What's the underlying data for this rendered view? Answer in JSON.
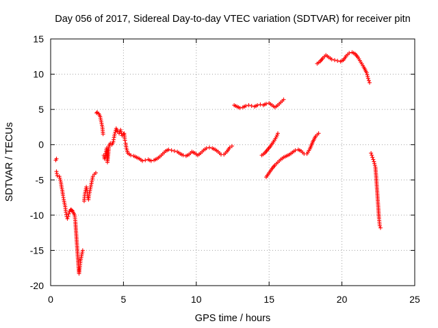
{
  "chart_data": {
    "type": "scatter",
    "title": "Day 056 of 2017, Sidereal Day-to-day VTEC variation (SDTVAR) for receiver pitn",
    "xlabel": "GPS time / hours",
    "ylabel": "SDTVAR / TECUs",
    "xlim": [
      0,
      25
    ],
    "ylim": [
      -20,
      15
    ],
    "xticks": [
      0,
      5,
      10,
      15,
      20,
      25
    ],
    "yticks": [
      -20,
      -15,
      -10,
      -5,
      0,
      5,
      10,
      15
    ],
    "xtick_labels": [
      "0",
      "5",
      "10",
      "15",
      "20",
      "25"
    ],
    "ytick_labels": [
      "-20",
      "-15",
      "-10",
      "-5",
      "0",
      "5",
      "10",
      "15"
    ],
    "grid": true,
    "marker": "plus",
    "color": "#ff0000",
    "series": [
      {
        "points": [
          [
            0.35,
            -2.2
          ],
          [
            0.4,
            -2.0
          ],
          [
            0.4,
            -3.8
          ],
          [
            0.45,
            -4.4
          ],
          [
            0.6,
            -4.5
          ],
          [
            0.7,
            -5.3
          ],
          [
            0.75,
            -6.0
          ],
          [
            0.8,
            -6.5
          ],
          [
            0.85,
            -7.2
          ],
          [
            0.9,
            -7.8
          ],
          [
            0.95,
            -8.3
          ],
          [
            1.0,
            -8.8
          ],
          [
            1.05,
            -9.6
          ],
          [
            1.1,
            -10.2
          ],
          [
            1.15,
            -10.5
          ],
          [
            1.2,
            -10.2
          ],
          [
            1.25,
            -9.8
          ],
          [
            1.3,
            -9.5
          ],
          [
            1.35,
            -9.3
          ],
          [
            1.4,
            -9.2
          ],
          [
            1.45,
            -9.3
          ],
          [
            1.5,
            -9.4
          ],
          [
            1.55,
            -9.6
          ],
          [
            1.6,
            -9.8
          ],
          [
            1.65,
            -10.0
          ],
          [
            1.7,
            -11.0
          ],
          [
            1.75,
            -12.5
          ],
          [
            1.8,
            -14.0
          ],
          [
            1.85,
            -15.5
          ],
          [
            1.9,
            -17.0
          ],
          [
            1.95,
            -18.3
          ],
          [
            2.0,
            -17.5
          ],
          [
            2.05,
            -16.5
          ],
          [
            2.1,
            -16.0
          ],
          [
            2.15,
            -15.5
          ],
          [
            2.2,
            -15.0
          ],
          [
            2.3,
            -8.0
          ],
          [
            2.35,
            -7.0
          ],
          [
            2.4,
            -6.5
          ],
          [
            2.45,
            -6.0
          ],
          [
            2.5,
            -6.5
          ],
          [
            2.55,
            -7.5
          ],
          [
            2.6,
            -7.8
          ],
          [
            2.65,
            -7.0
          ],
          [
            2.7,
            -6.5
          ],
          [
            2.75,
            -6.0
          ],
          [
            2.8,
            -5.5
          ],
          [
            2.85,
            -5.0
          ],
          [
            2.9,
            -4.5
          ],
          [
            3.0,
            -4.2
          ],
          [
            3.1,
            -4.0
          ],
          [
            3.15,
            4.5
          ],
          [
            3.2,
            4.6
          ],
          [
            3.3,
            4.4
          ],
          [
            3.4,
            4.0
          ],
          [
            3.45,
            3.5
          ],
          [
            3.5,
            3.0
          ],
          [
            3.55,
            2.5
          ],
          [
            3.6,
            1.5
          ],
          [
            3.65,
            -1.5
          ],
          [
            3.7,
            -2.0
          ],
          [
            3.75,
            -1.8
          ],
          [
            3.8,
            -1.0
          ],
          [
            3.85,
            -0.5
          ],
          [
            3.9,
            -2.5
          ],
          [
            3.95,
            -1.5
          ],
          [
            4.0,
            -0.2
          ],
          [
            4.1,
            0.2
          ],
          [
            4.2,
            0.0
          ],
          [
            4.3,
            0.4
          ],
          [
            4.35,
            1.0
          ],
          [
            4.4,
            1.5
          ],
          [
            4.5,
            2.3
          ],
          [
            4.6,
            1.9
          ],
          [
            4.7,
            1.6
          ],
          [
            4.8,
            2.1
          ],
          [
            4.9,
            1.3
          ],
          [
            5.0,
            1.5
          ],
          [
            5.05,
            1.6
          ],
          [
            5.1,
            0.6
          ],
          [
            5.15,
            0.2
          ],
          [
            5.2,
            -0.5
          ],
          [
            5.3,
            -1.2
          ],
          [
            5.5,
            -1.5
          ],
          [
            5.7,
            -1.6
          ],
          [
            5.9,
            -1.8
          ],
          [
            6.1,
            -2.0
          ],
          [
            6.3,
            -2.3
          ],
          [
            6.5,
            -2.2
          ],
          [
            6.7,
            -2.1
          ],
          [
            6.9,
            -2.3
          ],
          [
            7.1,
            -2.2
          ],
          [
            7.3,
            -2.0
          ],
          [
            7.5,
            -1.7
          ],
          [
            7.7,
            -1.3
          ],
          [
            7.9,
            -0.9
          ],
          [
            8.1,
            -0.7
          ],
          [
            8.3,
            -0.8
          ],
          [
            8.5,
            -0.9
          ],
          [
            8.7,
            -1.0
          ],
          [
            8.9,
            -1.3
          ],
          [
            9.1,
            -1.5
          ],
          [
            9.3,
            -1.6
          ],
          [
            9.5,
            -1.4
          ],
          [
            9.7,
            -1.0
          ],
          [
            9.9,
            -1.2
          ],
          [
            10.1,
            -1.5
          ],
          [
            10.3,
            -1.2
          ],
          [
            10.5,
            -0.8
          ],
          [
            10.7,
            -0.5
          ],
          [
            10.9,
            -0.4
          ],
          [
            11.1,
            -0.5
          ],
          [
            11.3,
            -0.7
          ],
          [
            11.5,
            -1.0
          ],
          [
            11.7,
            -1.4
          ],
          [
            11.9,
            -1.4
          ],
          [
            12.1,
            -1.0
          ],
          [
            12.3,
            -0.4
          ],
          [
            12.45,
            -0.2
          ],
          [
            12.6,
            5.6
          ],
          [
            12.8,
            5.4
          ],
          [
            13.0,
            5.2
          ],
          [
            13.2,
            5.3
          ],
          [
            13.4,
            5.5
          ],
          [
            13.6,
            5.6
          ],
          [
            13.8,
            5.5
          ],
          [
            14.0,
            5.4
          ],
          [
            14.2,
            5.6
          ],
          [
            14.4,
            5.7
          ],
          [
            14.6,
            5.6
          ],
          [
            14.8,
            5.8
          ],
          [
            15.0,
            5.9
          ],
          [
            15.2,
            5.6
          ],
          [
            15.4,
            5.3
          ],
          [
            15.6,
            5.6
          ],
          [
            15.8,
            6.0
          ],
          [
            16.0,
            6.4
          ],
          [
            14.5,
            -1.5
          ],
          [
            14.7,
            -1.2
          ],
          [
            14.9,
            -0.7
          ],
          [
            15.1,
            -0.2
          ],
          [
            15.3,
            0.4
          ],
          [
            15.5,
            1.1
          ],
          [
            15.6,
            1.6
          ],
          [
            14.8,
            -4.6
          ],
          [
            15.0,
            -4.0
          ],
          [
            15.2,
            -3.4
          ],
          [
            15.4,
            -2.9
          ],
          [
            15.6,
            -2.5
          ],
          [
            15.8,
            -2.1
          ],
          [
            16.0,
            -1.8
          ],
          [
            16.2,
            -1.6
          ],
          [
            16.4,
            -1.4
          ],
          [
            16.6,
            -1.1
          ],
          [
            16.8,
            -0.8
          ],
          [
            17.0,
            -0.7
          ],
          [
            17.2,
            -0.9
          ],
          [
            17.4,
            -1.3
          ],
          [
            17.6,
            -1.3
          ],
          [
            17.8,
            -0.6
          ],
          [
            18.0,
            0.4
          ],
          [
            18.2,
            1.2
          ],
          [
            18.4,
            1.6
          ],
          [
            18.3,
            11.5
          ],
          [
            18.5,
            11.8
          ],
          [
            18.7,
            12.3
          ],
          [
            18.9,
            12.7
          ],
          [
            19.1,
            12.4
          ],
          [
            19.3,
            12.1
          ],
          [
            19.5,
            12.0
          ],
          [
            19.7,
            11.9
          ],
          [
            19.9,
            11.8
          ],
          [
            20.1,
            12.0
          ],
          [
            20.3,
            12.6
          ],
          [
            20.5,
            13.0
          ],
          [
            20.7,
            13.1
          ],
          [
            20.9,
            12.9
          ],
          [
            21.1,
            12.4
          ],
          [
            21.3,
            11.7
          ],
          [
            21.5,
            11.0
          ],
          [
            21.7,
            10.2
          ],
          [
            21.8,
            9.4
          ],
          [
            21.9,
            8.8
          ],
          [
            22.0,
            -1.2
          ],
          [
            22.1,
            -1.8
          ],
          [
            22.2,
            -2.4
          ],
          [
            22.3,
            -3.2
          ],
          [
            22.35,
            -4.5
          ],
          [
            22.4,
            -6.0
          ],
          [
            22.45,
            -7.5
          ],
          [
            22.5,
            -9.0
          ],
          [
            22.55,
            -10.5
          ],
          [
            22.6,
            -11.5
          ],
          [
            22.65,
            -11.8
          ]
        ]
      }
    ]
  }
}
